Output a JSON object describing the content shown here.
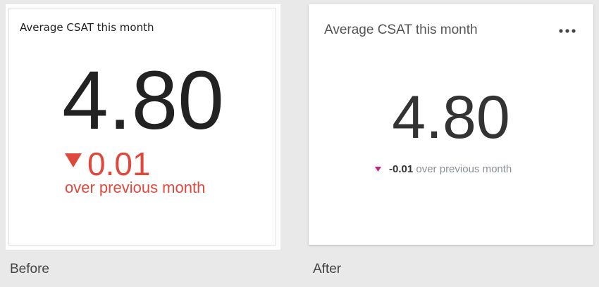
{
  "before": {
    "card": {
      "title": "Average CSAT this month",
      "value": "4.80",
      "delta": "0.01",
      "delta_label": "over previous month"
    },
    "caption": "Before"
  },
  "after": {
    "card": {
      "title": "Average CSAT this month",
      "value": "4.80",
      "delta": "-0.01",
      "delta_label": "over previous month"
    },
    "caption": "After"
  }
}
